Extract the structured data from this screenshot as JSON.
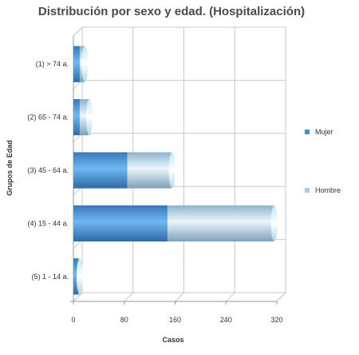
{
  "chart_data": {
    "type": "bar",
    "orientation": "horizontal",
    "stacked": true,
    "title": "Distribución por sexo y edad. (Hospitalización)",
    "xlabel": "Casos",
    "ylabel": "Grupos de Edad",
    "xlim": [
      0,
      320
    ],
    "xticks": [
      0,
      80,
      160,
      240,
      320
    ],
    "grid": true,
    "legend": "right",
    "categories": [
      "(1) > 74 a.",
      "(2) 65 - 74 a.",
      "(3) 45 - 64 a.",
      "(4) 15 - 44 a.",
      "(5) 1 - 14 a."
    ],
    "series": [
      {
        "name": "Mujer",
        "values": [
          10,
          10,
          85,
          148,
          8
        ],
        "color": "#3f8fd2"
      },
      {
        "name": "Hombre",
        "values": [
          8,
          15,
          70,
          168,
          2
        ],
        "color": "#a9cde6"
      }
    ]
  }
}
